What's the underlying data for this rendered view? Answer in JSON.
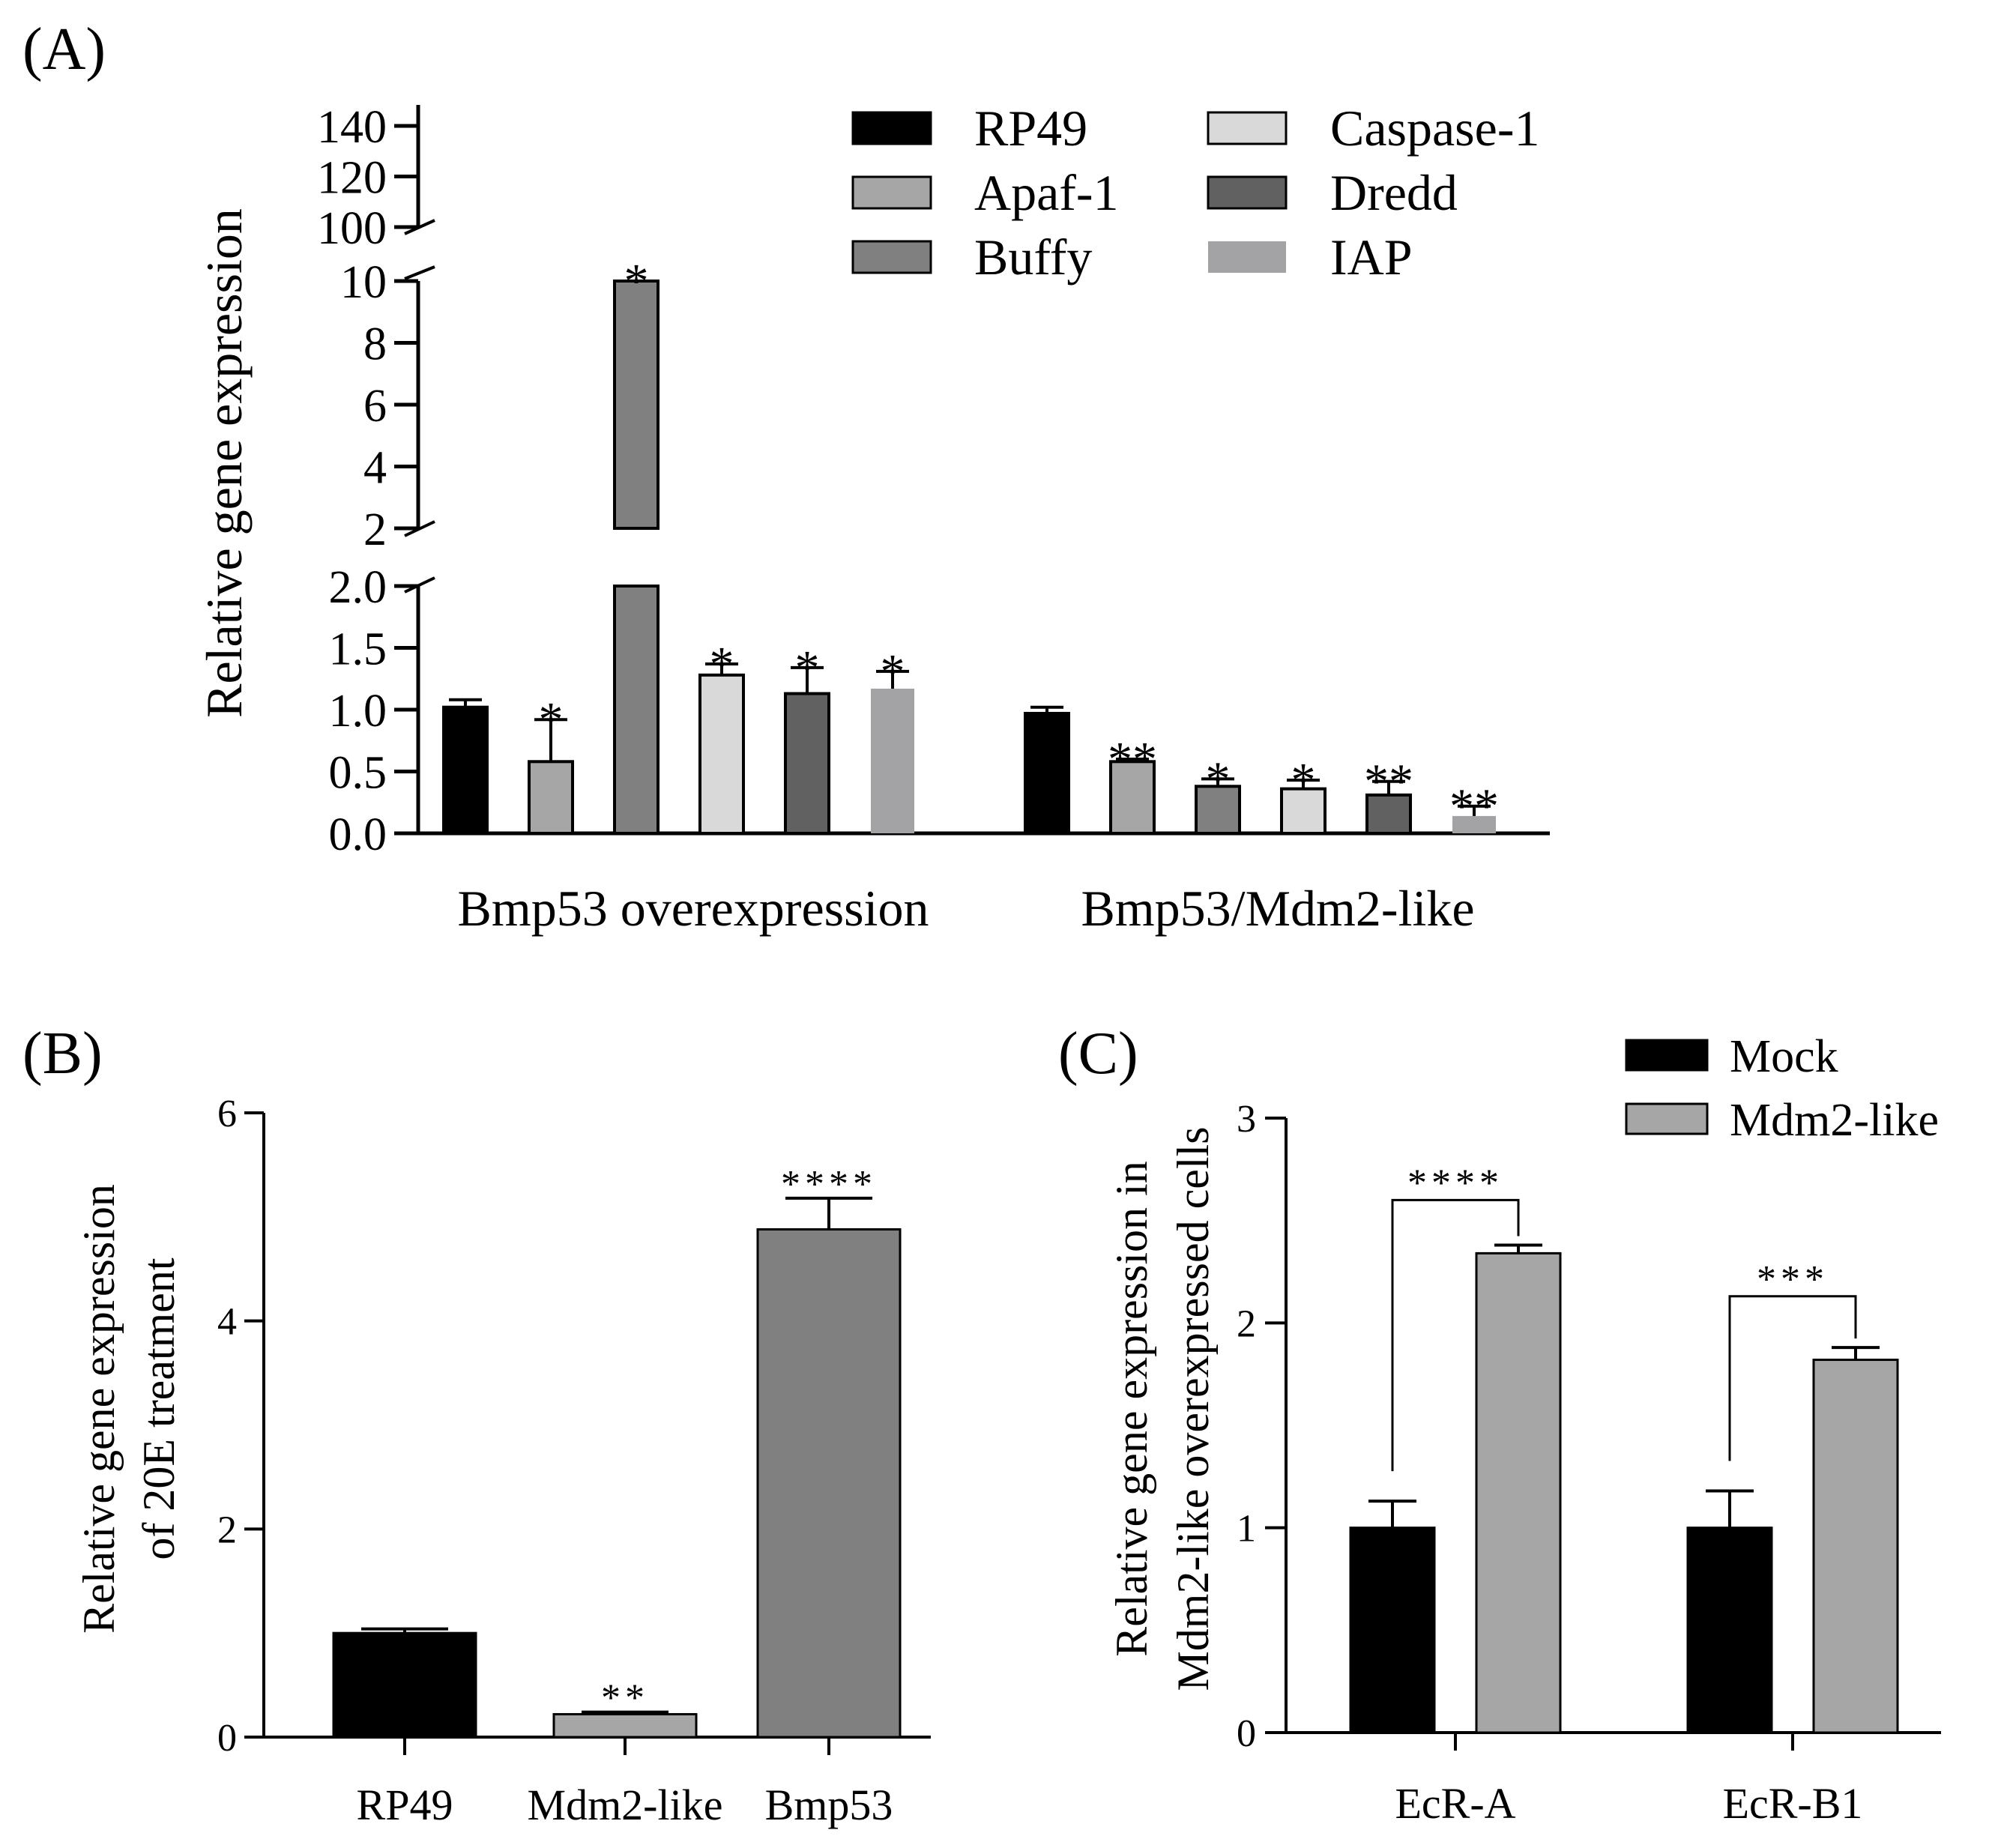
{
  "chart_data": [
    {
      "panel": "(A)",
      "type": "bar",
      "ylabel": "Relative gene expression",
      "axis_segments": [
        {
          "range": [
            0,
            2.0
          ],
          "ticks": [
            "0.0",
            "0.5",
            "1.0",
            "1.5",
            "2.0"
          ]
        },
        {
          "range": [
            2,
            10
          ],
          "ticks": [
            "2",
            "4",
            "6",
            "8",
            "10"
          ]
        },
        {
          "range": [
            100,
            140
          ],
          "ticks": [
            "100",
            "120",
            "140"
          ]
        }
      ],
      "categories": [
        "Bmp53 overexpression",
        "Bmp53/Mdm2-like"
      ],
      "series": [
        {
          "name": "RP49",
          "color": "#000000",
          "values": [
            1.02,
            0.97
          ],
          "errors": [
            0.06,
            0.05
          ],
          "sig": [
            "",
            ""
          ]
        },
        {
          "name": "Apaf-1",
          "color": "#a6a6a6",
          "values": [
            0.58,
            0.58
          ],
          "errors": [
            0.34,
            0.02
          ],
          "sig": [
            "*",
            "**"
          ]
        },
        {
          "name": "Buffy",
          "color": "#808080",
          "values": [
            10,
            0.38
          ],
          "errors": [
            0,
            0.06
          ],
          "sig": [
            "*",
            "*"
          ]
        },
        {
          "name": "Caspase-1",
          "color": "#d9d9d9",
          "values": [
            1.28,
            0.36
          ],
          "errors": [
            0.09,
            0.07
          ],
          "sig": [
            "*",
            "*"
          ]
        },
        {
          "name": "Dredd",
          "color": "#616161",
          "values": [
            1.13,
            0.31
          ],
          "errors": [
            0.21,
            0.11
          ],
          "sig": [
            "*",
            "**"
          ]
        },
        {
          "name": "IAP",
          "color": "#a3a3a6",
          "values": [
            1.17,
            0.14
          ],
          "errors": [
            0.14,
            0.08
          ],
          "sig": [
            "*",
            "**"
          ]
        }
      ],
      "legend": "top-right"
    },
    {
      "panel": "(B)",
      "type": "bar",
      "ylabel_lines": [
        "Relative gene expression",
        "of  20E treatment"
      ],
      "ylim": [
        0,
        6
      ],
      "ticks": [
        "0",
        "2",
        "4",
        "6"
      ],
      "categories": [
        "RP49",
        "Mdm2-like",
        "Bmp53"
      ],
      "values": [
        1.0,
        0.22,
        4.88
      ],
      "errors": [
        0.04,
        0.02,
        0.3
      ],
      "colors": [
        "#000000",
        "#a6a6a6",
        "#808080"
      ],
      "sig": [
        "",
        "**",
        "****"
      ]
    },
    {
      "panel": "(C)",
      "type": "bar",
      "ylabel_lines": [
        "Relative gene expression in",
        "Mdm2-like overexpressed cells"
      ],
      "ylim": [
        0,
        3
      ],
      "ticks": [
        "0",
        "1",
        "2",
        "3"
      ],
      "categories": [
        "EcR-A",
        "EcR-B1"
      ],
      "series": [
        {
          "name": "Mock",
          "color": "#000000",
          "values": [
            1.0,
            1.0
          ],
          "errors": [
            0.13,
            0.18
          ]
        },
        {
          "name": "Mdm2-like",
          "color": "#a6a6a6",
          "values": [
            2.34,
            1.82
          ],
          "errors": [
            0.04,
            0.06
          ]
        }
      ],
      "brackets": [
        "****",
        "***"
      ],
      "legend": "top-right"
    }
  ]
}
